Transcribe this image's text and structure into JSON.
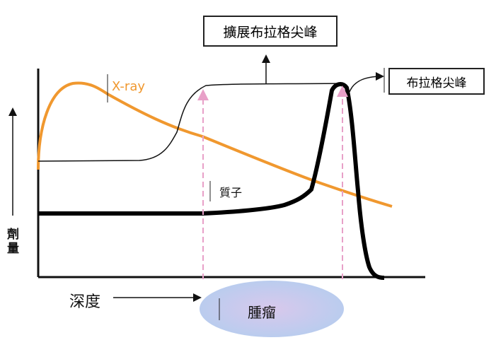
{
  "labels": {
    "extended_bragg_peak": "擴展布拉格尖峰",
    "bragg_peak": "布拉格尖峰",
    "xray": "X-ray",
    "proton": "質子",
    "dose": "劑量",
    "depth": "深度",
    "tumor": "腫瘤"
  },
  "colors": {
    "xray": "#f0982f",
    "proton": "#000000",
    "guide_lines": "#e8a0c8",
    "tumor": "#b8cdee"
  }
}
